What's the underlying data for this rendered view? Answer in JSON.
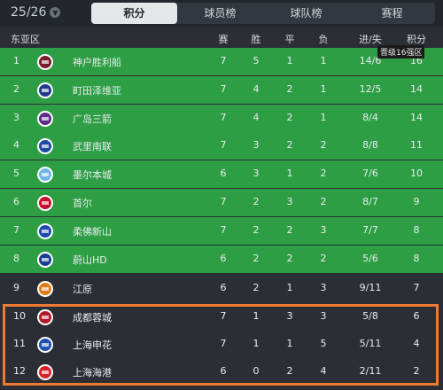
{
  "season": "25/26",
  "tabs": [
    "积分",
    "球员榜",
    "球队榜",
    "赛程"
  ],
  "active_tab": "积分",
  "header": {
    "group": "东亚区",
    "played": "赛",
    "win": "胜",
    "draw": "平",
    "loss": "负",
    "goals": "进/失",
    "points": "积分"
  },
  "badge": "晋级16强区",
  "rows": [
    {
      "rank": "1",
      "team": "神户胜利船",
      "p": "7",
      "w": "5",
      "d": "1",
      "l": "1",
      "g": "14/6",
      "pts": "16",
      "zone": "green",
      "color": "#7a1d2c"
    },
    {
      "rank": "2",
      "team": "町田泽维亚",
      "p": "7",
      "w": "4",
      "d": "2",
      "l": "1",
      "g": "12/5",
      "pts": "14",
      "zone": "green",
      "color": "#1f3c8a"
    },
    {
      "rank": "3",
      "team": "广岛三箭",
      "p": "7",
      "w": "4",
      "d": "2",
      "l": "1",
      "g": "8/4",
      "pts": "14",
      "zone": "green",
      "color": "#5a2d8a"
    },
    {
      "rank": "4",
      "team": "武里南联",
      "p": "7",
      "w": "3",
      "d": "2",
      "l": "2",
      "g": "8/8",
      "pts": "11",
      "zone": "green",
      "color": "#1a4a9e"
    },
    {
      "rank": "5",
      "team": "墨尔本城",
      "p": "6",
      "w": "3",
      "d": "1",
      "l": "2",
      "g": "7/6",
      "pts": "10",
      "zone": "green",
      "color": "#6fb6e6"
    },
    {
      "rank": "6",
      "team": "首尔",
      "p": "7",
      "w": "2",
      "d": "3",
      "l": "2",
      "g": "8/7",
      "pts": "9",
      "zone": "green",
      "color": "#c8102e"
    },
    {
      "rank": "7",
      "team": "柔佛新山",
      "p": "7",
      "w": "2",
      "d": "2",
      "l": "3",
      "g": "7/7",
      "pts": "8",
      "zone": "green",
      "color": "#1f4bb0"
    },
    {
      "rank": "8",
      "team": "蔚山HD",
      "p": "6",
      "w": "2",
      "d": "2",
      "l": "2",
      "g": "5/6",
      "pts": "8",
      "zone": "green",
      "color": "#1a3f8f"
    },
    {
      "rank": "9",
      "team": "江原",
      "p": "6",
      "w": "2",
      "d": "1",
      "l": "3",
      "g": "9/11",
      "pts": "7",
      "zone": "dark",
      "color": "#e07b1a"
    },
    {
      "rank": "10",
      "team": "成都蓉城",
      "p": "7",
      "w": "1",
      "d": "3",
      "l": "3",
      "g": "5/8",
      "pts": "6",
      "zone": "dark",
      "color": "#b0182a"
    },
    {
      "rank": "11",
      "team": "上海申花",
      "p": "7",
      "w": "1",
      "d": "1",
      "l": "5",
      "g": "5/11",
      "pts": "4",
      "zone": "dark",
      "color": "#1e4fb3"
    },
    {
      "rank": "12",
      "team": "上海海港",
      "p": "6",
      "w": "0",
      "d": "2",
      "l": "4",
      "g": "2/11",
      "pts": "2",
      "zone": "dark",
      "color": "#d4242a"
    }
  ]
}
